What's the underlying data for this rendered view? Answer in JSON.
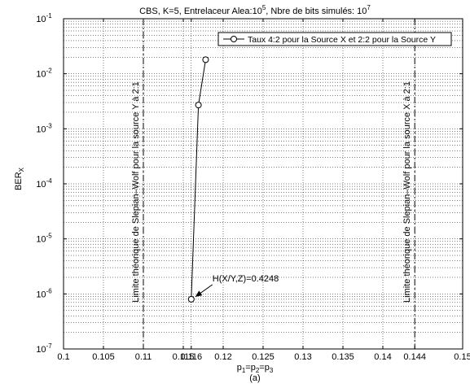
{
  "chart_data": {
    "type": "line",
    "title": {
      "base": "CBS, K=5, Entrelaceur Alea:10",
      "sup1": "5",
      "mid": ", Nbre de bits simulés: 10",
      "sup2": "7"
    },
    "xlabel": {
      "p1": "p",
      "s1": "1",
      "p2": "=p",
      "s2": "2",
      "p3": "=p",
      "s3": "3"
    },
    "ylabel": {
      "base": "BER",
      "sub": "X"
    },
    "caption": "(a)",
    "x_ticks": [
      "0.1",
      "0.105",
      "0.11",
      "0.115",
      "0.116",
      "0.12",
      "0.125",
      "0.13",
      "0.135",
      "0.14",
      "0.144",
      "0.15"
    ],
    "x_tick_values": [
      0.1,
      0.105,
      0.11,
      0.115,
      0.116,
      0.12,
      0.125,
      0.13,
      0.135,
      0.14,
      0.144,
      0.15
    ],
    "y_scale": "log",
    "y_tick_exponents": [
      -7,
      -6,
      -5,
      -4,
      -3,
      -2,
      -1
    ],
    "y_tick_base": "10",
    "xlim": [
      0.1,
      0.15
    ],
    "ylim": [
      1e-07,
      0.1
    ],
    "grid": true,
    "legend_position": "top-right",
    "series": [
      {
        "name": "Taux 4:2 pour la Source X et 2:2 pour la Source Y",
        "marker": "circle",
        "color": "#000000",
        "x": [
          0.116,
          0.1169,
          0.1178
        ],
        "y": [
          8e-07,
          0.0027,
          0.018
        ]
      }
    ],
    "vlines": [
      {
        "x": 0.11,
        "label": "Limite théorique de Slepian–Wolf pour la source Y à 2:1"
      },
      {
        "x": 0.144,
        "label": "Limite théorique de Slepian–Wolf pour la source X à 2:1"
      }
    ],
    "annotation": {
      "text": "H(X/Y,Z)=0.4248",
      "x": 0.116,
      "y": 8e-07
    }
  }
}
